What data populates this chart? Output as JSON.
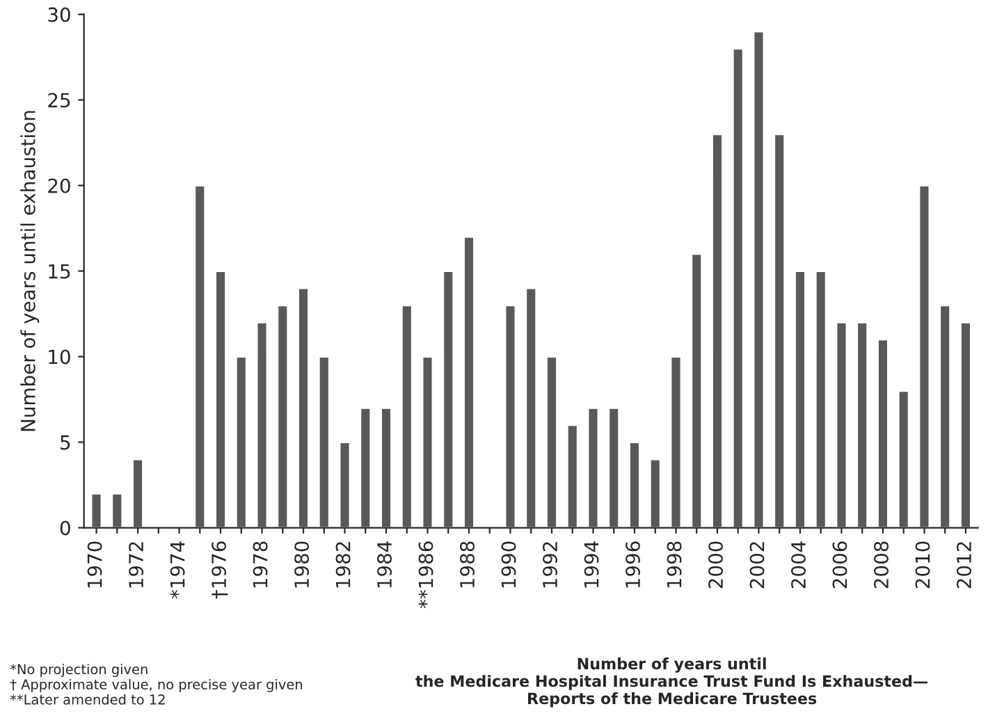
{
  "chart_data": {
    "type": "bar",
    "title": "Number of years until\nthe Medicare Hospital Insurance Trust Fund Is Exhausted—\nReports of the Medicare Trustees",
    "ylabel": "Number of years until exhaustion",
    "categories": [
      "1970",
      null,
      "1972",
      null,
      "*1974",
      null,
      "†1976",
      null,
      "1978",
      null,
      "1980",
      null,
      "1982",
      null,
      "1984",
      null,
      "**1986",
      null,
      "1988",
      null,
      "1990",
      null,
      "1992",
      null,
      "1994",
      null,
      "1996",
      null,
      "1998",
      null,
      "2000",
      null,
      "2002",
      null,
      "2004",
      null,
      "2006",
      null,
      "2008",
      null,
      "2010",
      null,
      "2012"
    ],
    "values": [
      2,
      2,
      4,
      null,
      null,
      20,
      15,
      10,
      12,
      13,
      14,
      10,
      5,
      7,
      7,
      13,
      10,
      15,
      17,
      null,
      13,
      14,
      10,
      6,
      7,
      7,
      5,
      4,
      10,
      16,
      23,
      28,
      29,
      23,
      15,
      15,
      12,
      12,
      11,
      8,
      20,
      13,
      12
    ],
    "color": "#595959",
    "ylim": [
      0,
      30
    ],
    "yticks": [
      0,
      5,
      10,
      15,
      20,
      25,
      30
    ],
    "grid": false,
    "annotations": [
      "*No projection given\n† Approximate value, no precise year given\n**Later amended to 12"
    ]
  }
}
